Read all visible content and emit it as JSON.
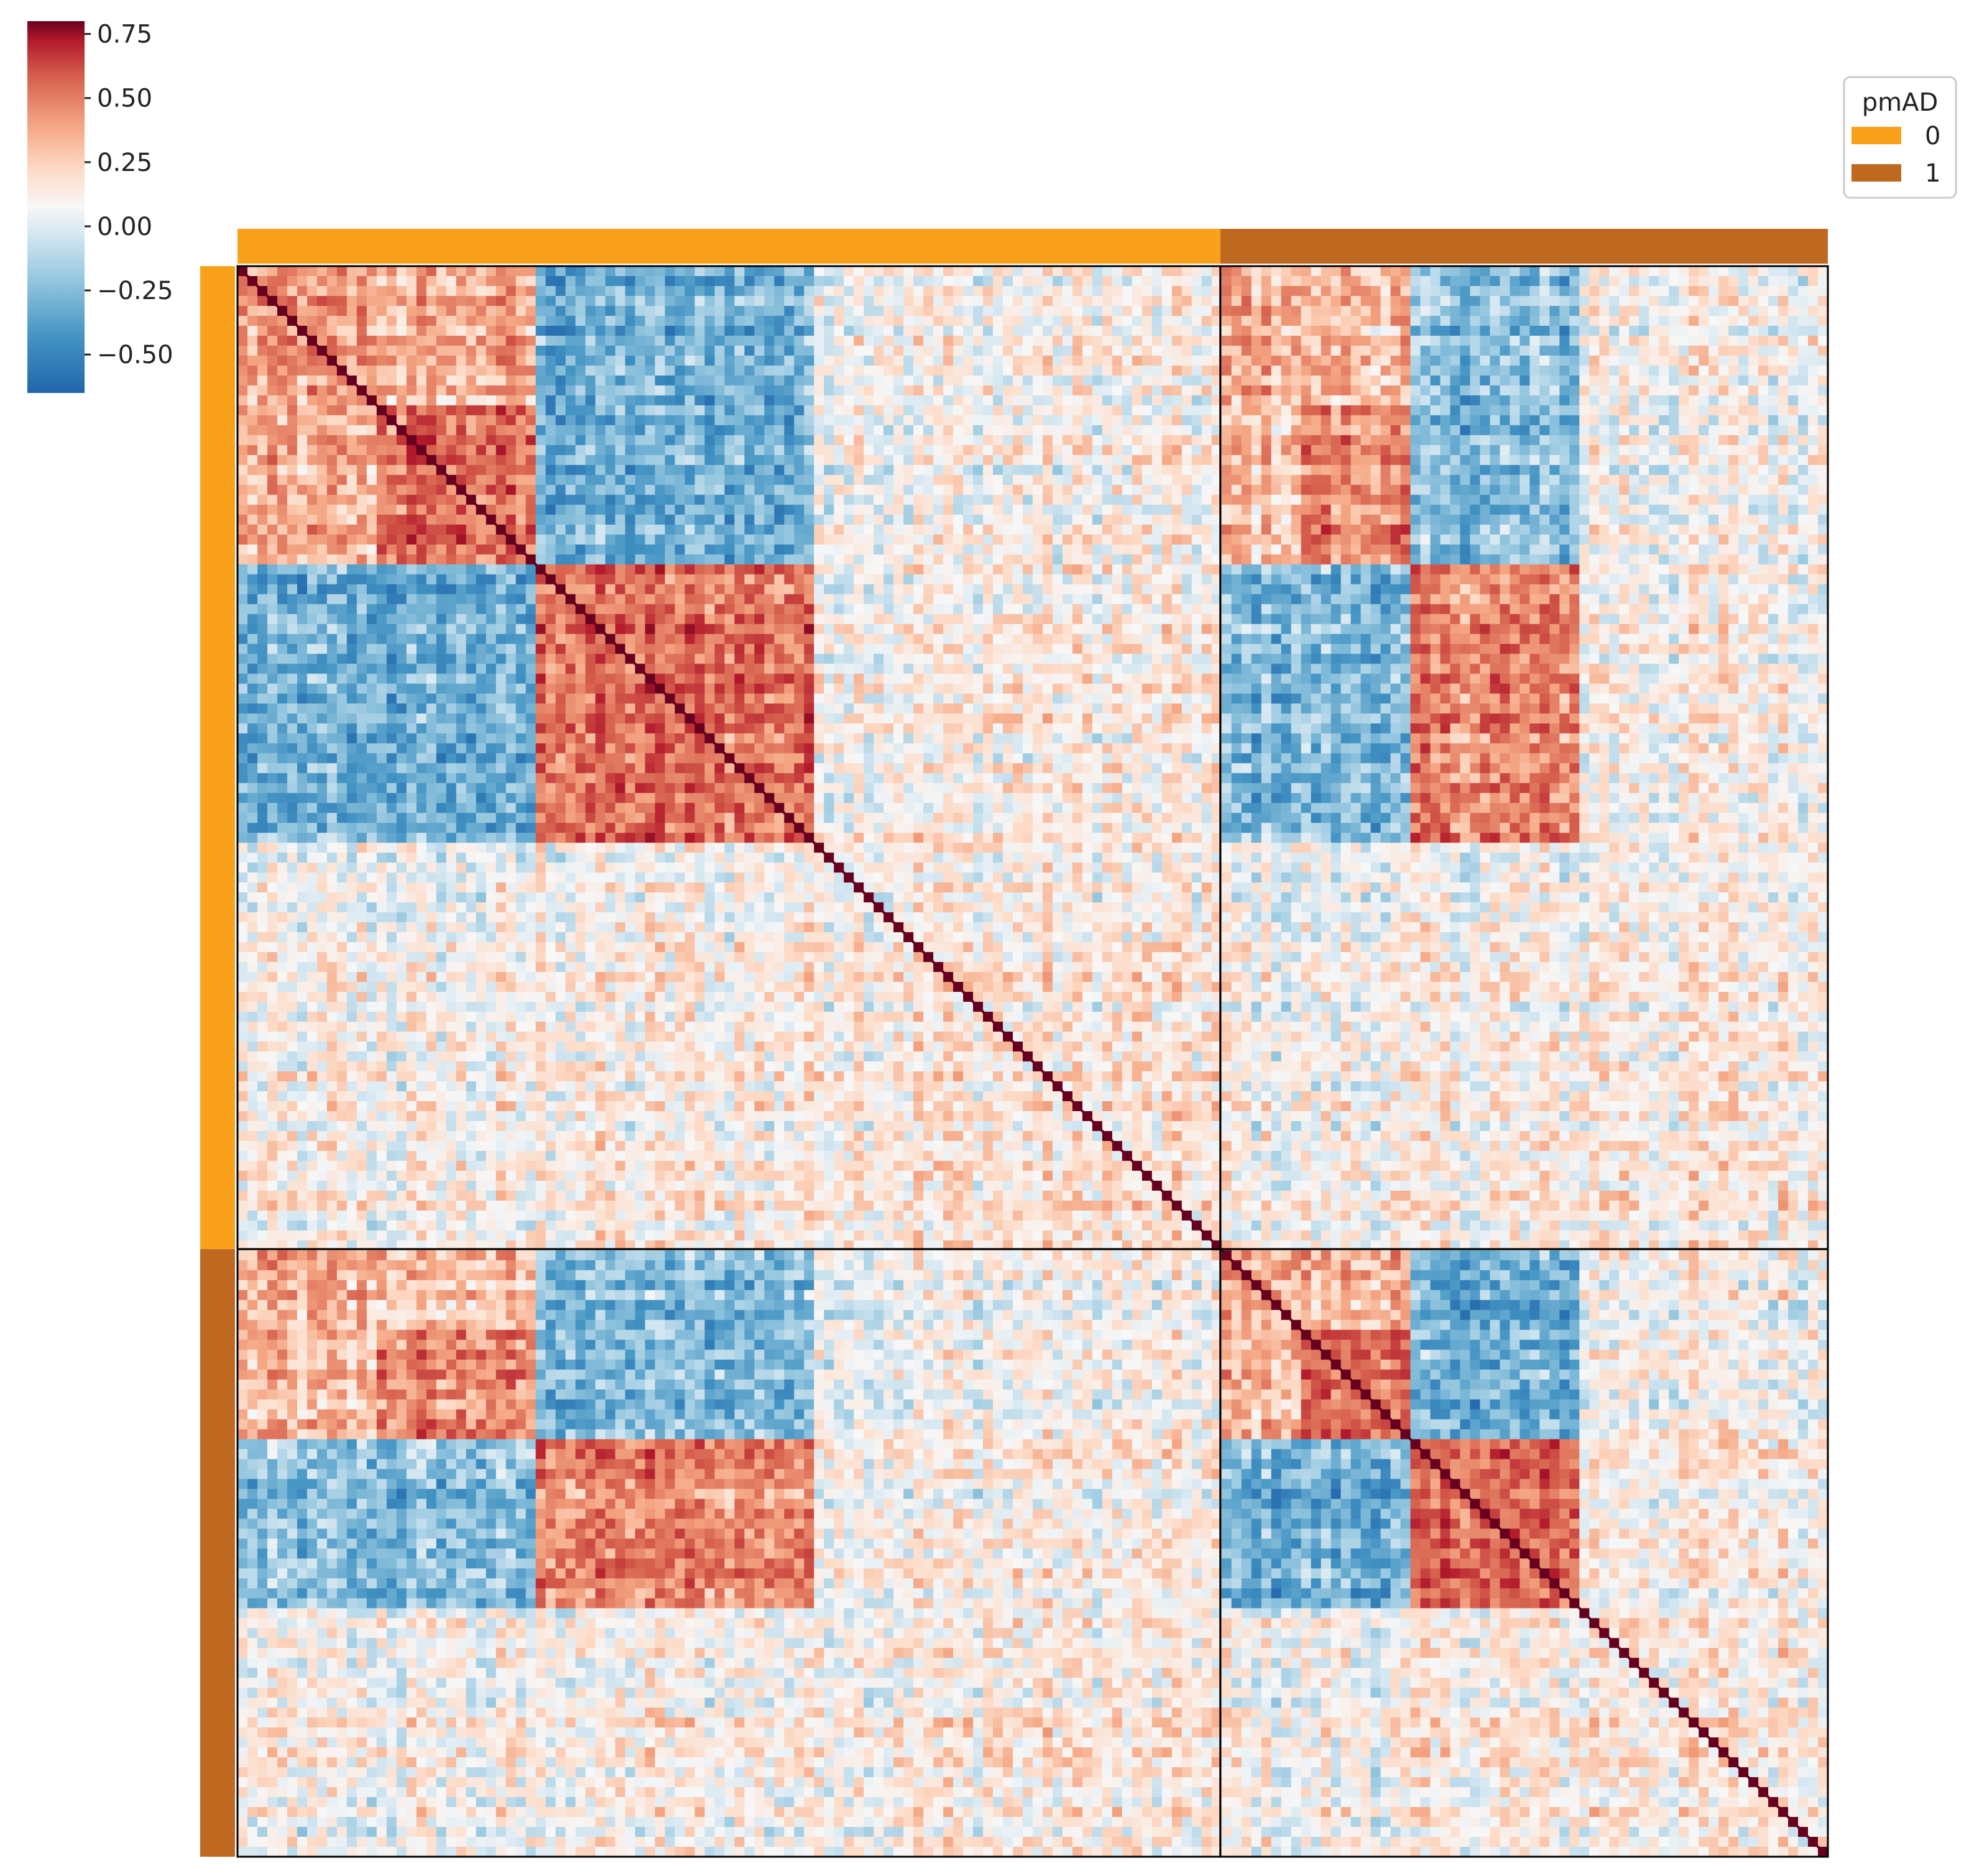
{
  "chart_data": {
    "type": "heatmap",
    "title": "",
    "xlabel": "",
    "ylabel": "",
    "colormap": "RdBu_r",
    "value_range": [
      -0.65,
      0.8
    ],
    "colorbar": {
      "ticks": [
        0.75,
        0.5,
        0.25,
        0.0,
        -0.25,
        -0.5
      ],
      "tick_labels": [
        "0.75",
        "0.50",
        "0.25",
        "0.00",
        "−0.25",
        "−0.50"
      ]
    },
    "groups": [
      {
        "label": "0",
        "fraction": 0.618,
        "color": "#f9a11b"
      },
      {
        "label": "1",
        "fraction": 0.382,
        "color": "#bf6920"
      }
    ],
    "legend": {
      "title": "pmAD",
      "position": "top-right",
      "entries": [
        {
          "label": "0",
          "color": "#f9a11b"
        },
        {
          "label": "1",
          "color": "#bf6920"
        }
      ]
    },
    "diagonal_value": 1.0,
    "cluster_blocks": [
      {
        "range": [
          0.0,
          0.19
        ],
        "sub_ranges": [
          [
            0.0,
            0.085
          ],
          [
            0.085,
            0.19
          ]
        ]
      },
      {
        "range": [
          0.19,
          0.362
        ]
      },
      {
        "range": [
          0.362,
          0.618
        ]
      }
    ],
    "block_correlations": [
      [
        0.35,
        -0.35,
        0.02
      ],
      [
        -0.35,
        0.45,
        0.05
      ],
      [
        0.02,
        0.05,
        0.08
      ]
    ],
    "notes_on_structure": "Same block structure repeated in both pmAD groups; strong positive within blocks 1 and 2, strong negative between them."
  }
}
